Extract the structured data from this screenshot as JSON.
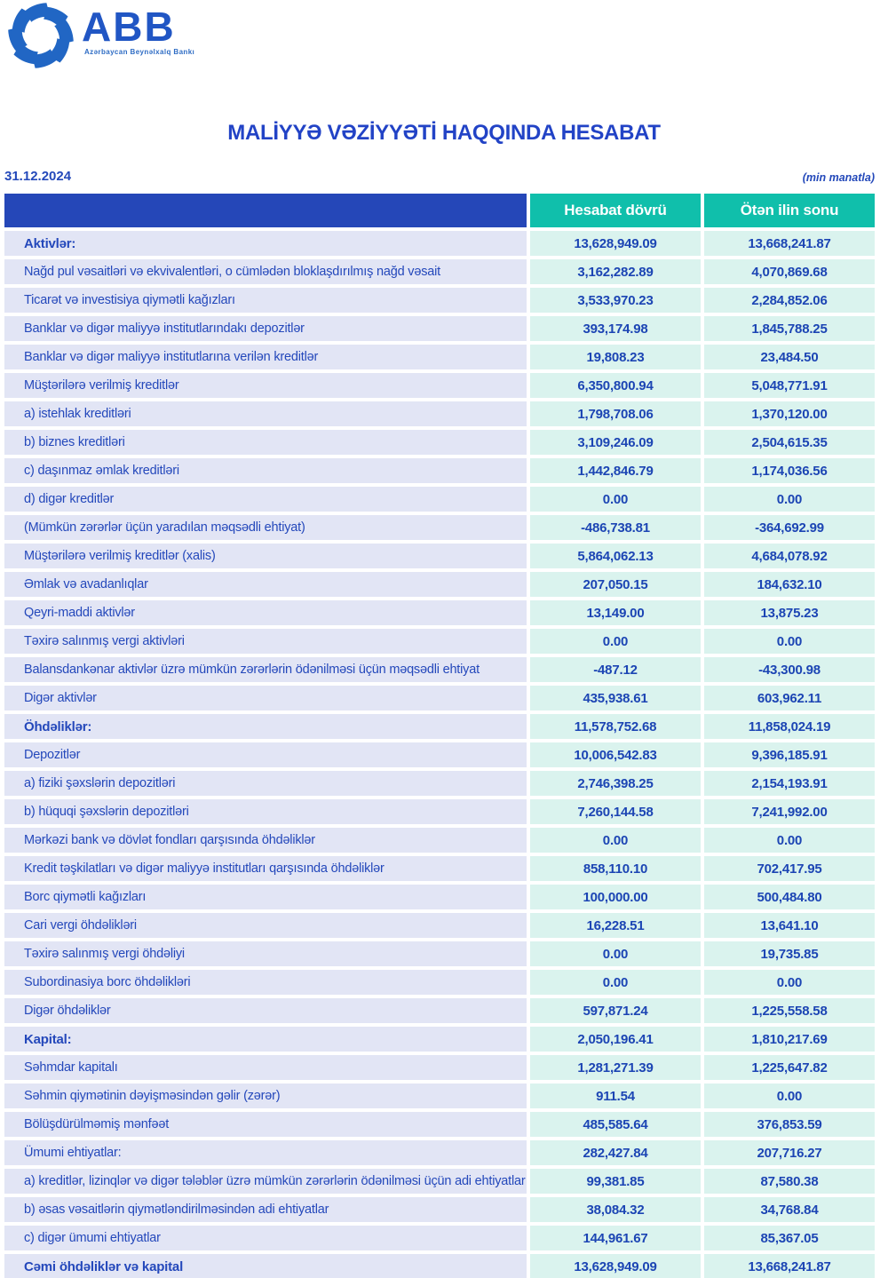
{
  "logo": {
    "brand": "ABB",
    "tagline": "Azərbaycan Beynəlxalq Bankı"
  },
  "title": "MALİYYƏ VƏZİYYƏTİ HAQQINDA HESABAT",
  "report_date": "31.12.2024",
  "unit_note": "(min manatla)",
  "colors": {
    "header_bar_blue": "#2547b8",
    "header_teal": "#10bfab",
    "label_cell_bg": "#e2e5f5",
    "value_cell_bg": "#daf3ee",
    "text_blue": "#1c45b4",
    "logo_blue": "#2156c4"
  },
  "table": {
    "columns": [
      "Hesabat dövrü",
      "Ötən ilin sonu"
    ],
    "rows": [
      {
        "label": "Aktivlər:",
        "current": "13,628,949.09",
        "previous": "13,668,241.87",
        "bold": true
      },
      {
        "label": "Nağd pul vəsaitləri və  ekvivalentləri, o cümlədən bloklaşdırılmış nağd vəsait",
        "current": "3,162,282.89",
        "previous": "4,070,869.68",
        "bold": false
      },
      {
        "label": "Ticarət və investisiya qiymətli kağızları",
        "current": "3,533,970.23",
        "previous": "2,284,852.06",
        "bold": false
      },
      {
        "label": "Banklar və digər maliyyə institutlarındakı depozitlər",
        "current": "393,174.98",
        "previous": "1,845,788.25",
        "bold": false
      },
      {
        "label": "Banklar və digər maliyyə institutlarına verilən kreditlər",
        "current": "19,808.23",
        "previous": "23,484.50",
        "bold": false
      },
      {
        "label": "Müştərilərə verilmiş kreditlər",
        "current": "6,350,800.94",
        "previous": "5,048,771.91",
        "bold": false
      },
      {
        "label": "a) istehlak kreditləri",
        "current": "1,798,708.06",
        "previous": "1,370,120.00",
        "bold": false
      },
      {
        "label": "b) biznes kreditləri",
        "current": "3,109,246.09",
        "previous": "2,504,615.35",
        "bold": false
      },
      {
        "label": "c) daşınmaz əmlak kreditləri",
        "current": "1,442,846.79",
        "previous": "1,174,036.56",
        "bold": false
      },
      {
        "label": "d) digər kreditlər",
        "current": "0.00",
        "previous": "0.00",
        "bold": false
      },
      {
        "label": "(Mümkün zərərlər üçün yaradılan məqsədli ehtiyat)",
        "current": "-486,738.81",
        "previous": "-364,692.99",
        "bold": false
      },
      {
        "label": "Müştərilərə verilmiş kreditlər (xalis)",
        "current": "5,864,062.13",
        "previous": "4,684,078.92",
        "bold": false
      },
      {
        "label": "Əmlak və avadanlıqlar",
        "current": "207,050.15",
        "previous": "184,632.10",
        "bold": false
      },
      {
        "label": "Qeyri-maddi aktivlər",
        "current": "13,149.00",
        "previous": "13,875.23",
        "bold": false
      },
      {
        "label": "Təxirə salınmış vergi aktivləri",
        "current": "0.00",
        "previous": "0.00",
        "bold": false
      },
      {
        "label": "Balansdankənar aktivlər üzrə mümkün zərərlərin ödənilməsi üçün məqsədli ehtiyat",
        "current": "-487.12",
        "previous": "-43,300.98",
        "bold": false
      },
      {
        "label": "Digər aktivlər",
        "current": "435,938.61",
        "previous": "603,962.11",
        "bold": false
      },
      {
        "label": "Öhdəliklər:",
        "current": "11,578,752.68",
        "previous": "11,858,024.19",
        "bold": true
      },
      {
        "label": "Depozitlər",
        "current": "10,006,542.83",
        "previous": "9,396,185.91",
        "bold": false
      },
      {
        "label": "a) fiziki şəxslərin depozitləri",
        "current": "2,746,398.25",
        "previous": "2,154,193.91",
        "bold": false
      },
      {
        "label": "b) hüquqi şəxslərin depozitləri",
        "current": "7,260,144.58",
        "previous": "7,241,992.00",
        "bold": false
      },
      {
        "label": "Mərkəzi bank və dövlət fondları qarşısında öhdəliklər",
        "current": "0.00",
        "previous": "0.00",
        "bold": false
      },
      {
        "label": "Kredit təşkilatları və digər maliyyə institutları qarşısında öhdəliklər",
        "current": "858,110.10",
        "previous": "702,417.95",
        "bold": false
      },
      {
        "label": "Borc qiymətli kağızları",
        "current": "100,000.00",
        "previous": "500,484.80",
        "bold": false
      },
      {
        "label": "Cari vergi öhdəlikləri",
        "current": "16,228.51",
        "previous": "13,641.10",
        "bold": false
      },
      {
        "label": "Təxirə salınmış vergi öhdəliyi",
        "current": "0.00",
        "previous": "19,735.85",
        "bold": false
      },
      {
        "label": "Subordinasiya borc öhdəlikləri",
        "current": "0.00",
        "previous": "0.00",
        "bold": false
      },
      {
        "label": "Digər öhdəliklər",
        "current": "597,871.24",
        "previous": "1,225,558.58",
        "bold": false
      },
      {
        "label": "Kapital:",
        "current": "2,050,196.41",
        "previous": "1,810,217.69",
        "bold": true
      },
      {
        "label": "Səhmdar kapitalı",
        "current": "1,281,271.39",
        "previous": "1,225,647.82",
        "bold": false
      },
      {
        "label": "Səhmin qiymətinin dəyişməsindən gəlir (zərər)",
        "current": "911.54",
        "previous": "0.00",
        "bold": false
      },
      {
        "label": "Bölüşdürülməmiş mənfəət",
        "current": "485,585.64",
        "previous": "376,853.59",
        "bold": false
      },
      {
        "label": "Ümumi ehtiyatlar:",
        "current": "282,427.84",
        "previous": "207,716.27",
        "bold": false
      },
      {
        "label": "a) kreditlər, lizinqlər və digər tələblər üzrə mümkün zərərlərin ödənilməsi üçün adi ehtiyatlar",
        "current": "99,381.85",
        "previous": "87,580.38",
        "bold": false
      },
      {
        "label": "b) əsas vəsaitlərin qiymətləndirilməsindən adi ehtiyatlar",
        "current": "38,084.32",
        "previous": "34,768.84",
        "bold": false
      },
      {
        "label": "c) digər ümumi ehtiyatlar",
        "current": "144,961.67",
        "previous": "85,367.05",
        "bold": false
      },
      {
        "label": "Cəmi öhdəliklər və kapital",
        "current": "13,628,949.09",
        "previous": "13,668,241.87",
        "bold": true
      }
    ]
  }
}
